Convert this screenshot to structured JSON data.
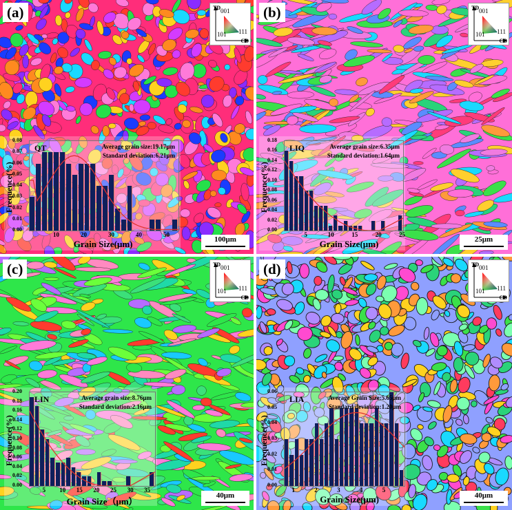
{
  "figure": {
    "panels": [
      {
        "label": "(a)",
        "sample": "QT",
        "average": "Average grain size:19.17μm",
        "stddev": "Standard deviation:6.21μm",
        "scalebar": "100μm",
        "xlabel": "Grain Size(μm)",
        "ylabel": "Frequence(%)",
        "yticks": [
          "0.08",
          "0.07",
          "0.06",
          "0.05",
          "0.04",
          "0.03",
          "0.02",
          "0.01",
          "0.00"
        ],
        "xticks": [
          "10",
          "20",
          "30",
          "40",
          "50"
        ],
        "palette": [
          "#ff2d7a",
          "#1a3cff",
          "#25e04a",
          "#ff3b2e",
          "#d43bff",
          "#ffd21f",
          "#19d9ff",
          "#ff7ad9",
          "#8a2cff",
          "#ff8a1f"
        ]
      },
      {
        "label": "(b)",
        "sample": "LIQ",
        "average": "Average grain size:6.35μm",
        "stddev": "Standard deviation:1.64μm",
        "scalebar": "25μm",
        "xlabel": "Grain Size(μm)",
        "ylabel": "Frequence(%)",
        "yticks": [
          "0.18",
          "0.16",
          "0.14",
          "0.12",
          "0.10",
          "0.08",
          "0.06",
          "0.04",
          "0.02",
          "0.00"
        ],
        "xticks": [
          "5",
          "10",
          "15",
          "20",
          "25"
        ],
        "palette": [
          "#ff6fd8",
          "#3be04a",
          "#b66cff",
          "#ff3b7a",
          "#5b8cff",
          "#ffcf2e",
          "#19d9ff",
          "#f07be0",
          "#2ad37a",
          "#ff9a3b"
        ]
      },
      {
        "label": "(c)",
        "sample": "LIN",
        "average": "Average grain size:8.76μm",
        "stddev": "Standard deviation:2.16μm",
        "scalebar": "40μm",
        "xlabel": "Grain Size（μm）",
        "ylabel": "Frequence(%)",
        "yticks": [
          "0.20",
          "0.18",
          "0.16",
          "0.14",
          "0.12",
          "0.10",
          "0.08",
          "0.06",
          "0.04",
          "0.02",
          "0.00"
        ],
        "xticks": [
          "5",
          "10",
          "15",
          "20",
          "25",
          "30",
          "35"
        ],
        "palette": [
          "#2ee64a",
          "#ff7ad9",
          "#1fd9a8",
          "#ff3b2e",
          "#6bff3b",
          "#b66cff",
          "#ffd21f",
          "#19c9ff",
          "#ff8ac0",
          "#3be07a"
        ]
      },
      {
        "label": "(d)",
        "sample": "LIA",
        "average": "Average Grain Size:5.65μm",
        "stddev": "Standard deviation:1.20μm",
        "scalebar": "40μm",
        "xlabel": "Grain Size(μm)",
        "ylabel": "Frequence(%)",
        "yticks": [
          "0.06",
          "0.05",
          "0.04",
          "0.03",
          "0.02",
          "0.01",
          "0.00"
        ],
        "xticks": [
          "1",
          "2",
          "3",
          "4",
          "5"
        ],
        "palette": [
          "#8fa0ff",
          "#3be04a",
          "#ff9a3b",
          "#19d9ff",
          "#ff4ad0",
          "#ffd21f",
          "#b08cff",
          "#2ad37a",
          "#ff3b5e",
          "#7bffb0"
        ]
      }
    ],
    "ipf_legend": {
      "td": "TD",
      "cd": "CD",
      "pole_001": "001",
      "pole_101": "101",
      "pole_111": "111"
    }
  },
  "chart_data": [
    {
      "type": "bar",
      "title": "QT",
      "annotations": [
        "Average grain size:19.17μm",
        "Standard deviation:6.21μm"
      ],
      "xlabel": "Grain Size(μm)",
      "ylabel": "Frequence(%)",
      "xlim": [
        0,
        54
      ],
      "ylim": [
        0,
        0.08
      ],
      "x": [
        1.1,
        3.3,
        5.5,
        7.7,
        9.9,
        12.1,
        14.3,
        16.5,
        18.7,
        20.9,
        23.1,
        25.3,
        27.5,
        29.7,
        31.9,
        34.1,
        36.3,
        38.5,
        40.7,
        42.9,
        45.1,
        47.3,
        49.5,
        51.7,
        53.9
      ],
      "values": [
        0.03,
        0.06,
        0.07,
        0.07,
        0.07,
        0.07,
        0.06,
        0.05,
        0.06,
        0.06,
        0.06,
        0.04,
        0.04,
        0.05,
        0.02,
        0.01,
        0.04,
        0,
        0,
        0,
        0.01,
        0.01,
        0,
        0,
        0.01
      ],
      "fit": "normal curve (red), peak ≈0.067 near 17μm",
      "grid": false
    },
    {
      "type": "bar",
      "title": "LIQ",
      "annotations": [
        "Average grain size:6.35μm",
        "Standard deviation:1.64μm"
      ],
      "xlabel": "Grain Size(μm)",
      "ylabel": "Frequence(%)",
      "xlim": [
        0,
        25
      ],
      "ylim": [
        0,
        0.18
      ],
      "x": [
        0.5,
        1.5,
        2.5,
        3.5,
        4.5,
        5.5,
        6.5,
        7.5,
        8.5,
        9.5,
        10.5,
        11.5,
        12.5,
        13.5,
        14.5,
        15.5,
        16.5,
        17.5,
        18.5,
        19.5,
        20.5,
        21.5,
        22.5,
        23.5,
        24.5
      ],
      "values": [
        0.16,
        0.14,
        0.11,
        0.11,
        0.08,
        0.08,
        0.05,
        0.05,
        0.05,
        0.01,
        0.03,
        0.01,
        0.02,
        0.01,
        0.01,
        0.01,
        0,
        0,
        0.02,
        0,
        0.02,
        0,
        0,
        0,
        0.03
      ],
      "fit": "decaying curve (red), minimum near 18μm",
      "grid": false
    },
    {
      "type": "bar",
      "title": "LIN",
      "annotations": [
        "Average grain size:8.76μm",
        "Standard deviation:2.16μm"
      ],
      "xlabel": "Grain Size（μm）",
      "ylabel": "Frequence(%)",
      "xlim": [
        0,
        37
      ],
      "ylim": [
        0,
        0.2
      ],
      "x": [
        0.75,
        2.25,
        3.75,
        5.25,
        6.75,
        8.25,
        9.75,
        11.25,
        12.75,
        14.25,
        15.75,
        17.25,
        18.75,
        20.25,
        21.75,
        23.25,
        24.75,
        26.25,
        27.75,
        29.25,
        30.75,
        32.25,
        33.75,
        35.25,
        36.75
      ],
      "values": [
        0.19,
        0.17,
        0.12,
        0.1,
        0.06,
        0.05,
        0.05,
        0.06,
        0.04,
        0.03,
        0.02,
        0.02,
        0,
        0.03,
        0.01,
        0.01,
        0,
        0,
        0,
        0.02,
        0,
        0,
        0,
        0,
        0.03
      ],
      "fit": "decaying curve (red), minimum near 22μm",
      "grid": false
    },
    {
      "type": "bar",
      "title": "LIA",
      "annotations": [
        "Average Grain Size:5.65μm",
        "Standard deviation:1.20μm"
      ],
      "xlabel": "Grain Size(μm)",
      "ylabel": "Frequence(%)",
      "xlim": [
        0.5,
        5.8
      ],
      "ylim": [
        0,
        0.065
      ],
      "x": [
        0.6,
        0.8,
        1.0,
        1.2,
        1.4,
        1.6,
        1.8,
        2.0,
        2.2,
        2.4,
        2.6,
        2.8,
        3.0,
        3.2,
        3.4,
        3.6,
        3.8,
        4.0,
        4.2,
        4.4,
        4.6,
        4.8,
        5.0,
        5.2
      ],
      "values": [
        0.03,
        0.02,
        0.03,
        0.02,
        0.03,
        0.03,
        0.04,
        0.03,
        0.04,
        0.05,
        0.03,
        0.05,
        0.05,
        0.05,
        0.05,
        0.04,
        0.04,
        0.04,
        0.05,
        0.04,
        0.04,
        0.06,
        0.04,
        0.01
      ],
      "fit": "normal curve (red), peak ≈0.047 near 3.4μm",
      "grid": false
    }
  ]
}
